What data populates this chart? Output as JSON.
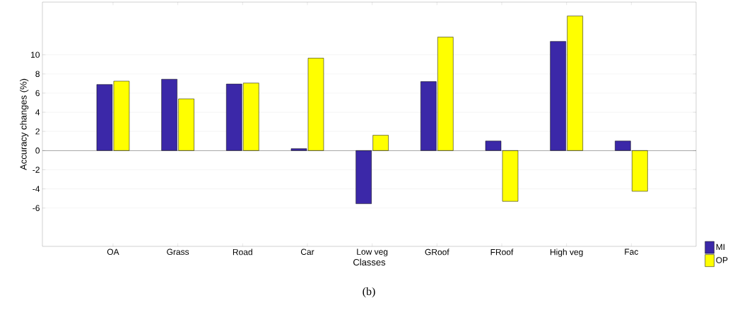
{
  "chart_data": {
    "type": "bar",
    "xlabel": "Classes",
    "ylabel": "Accuracy changes (%)",
    "annotations": [
      "(b)"
    ],
    "categories": [
      "OA",
      "Grass",
      "Road",
      "Car",
      "Low veg",
      "GRoof",
      "FRoof",
      "High veg",
      "Fac"
    ],
    "series": [
      {
        "name": "MI",
        "color": "#3b28a8",
        "values": [
          6.9,
          7.45,
          6.95,
          0.2,
          -5.55,
          7.2,
          1.0,
          11.4,
          1.0
        ]
      },
      {
        "name": "OP",
        "color": "#ffff00",
        "values": [
          7.25,
          5.4,
          7.05,
          9.65,
          1.6,
          11.85,
          -5.3,
          14.05,
          -4.25
        ]
      }
    ],
    "ylim": [
      -10,
      15.5
    ],
    "yticks": [
      -6,
      -4,
      -2,
      0,
      2,
      4,
      6,
      8,
      10
    ],
    "grid": "y",
    "legend": "bottom right"
  }
}
